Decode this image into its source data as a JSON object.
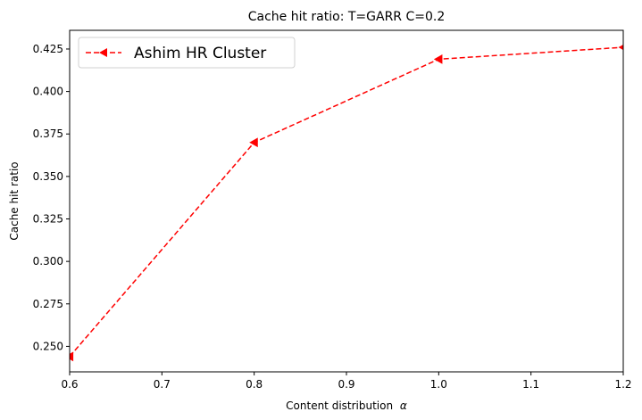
{
  "chart_data": {
    "type": "line",
    "title": "Cache hit ratio: T=GARR C=0.2",
    "xlabel": "Content distribution",
    "xlabel_symbol": "α",
    "ylabel": "Cache hit ratio",
    "xlim": [
      0.6,
      1.2
    ],
    "ylim": [
      0.235,
      0.436
    ],
    "xticks": [
      0.6,
      0.7,
      0.8,
      0.9,
      1.0,
      1.1,
      1.2
    ],
    "xtick_labels": [
      "0.6",
      "0.7",
      "0.8",
      "0.9",
      "1.0",
      "1.1",
      "1.2"
    ],
    "yticks": [
      0.25,
      0.275,
      0.3,
      0.325,
      0.35,
      0.375,
      0.4,
      0.425
    ],
    "ytick_labels": [
      "0.250",
      "0.275",
      "0.300",
      "0.325",
      "0.350",
      "0.375",
      "0.400",
      "0.425"
    ],
    "grid": false,
    "legend_position": "top-left",
    "series": [
      {
        "name": "Ashim HR Cluster",
        "color": "#ff0000",
        "line_style": "dashed",
        "marker": "triangle-left",
        "x": [
          0.6,
          0.8,
          1.0,
          1.2
        ],
        "y": [
          0.244,
          0.37,
          0.419,
          0.426
        ]
      }
    ]
  }
}
